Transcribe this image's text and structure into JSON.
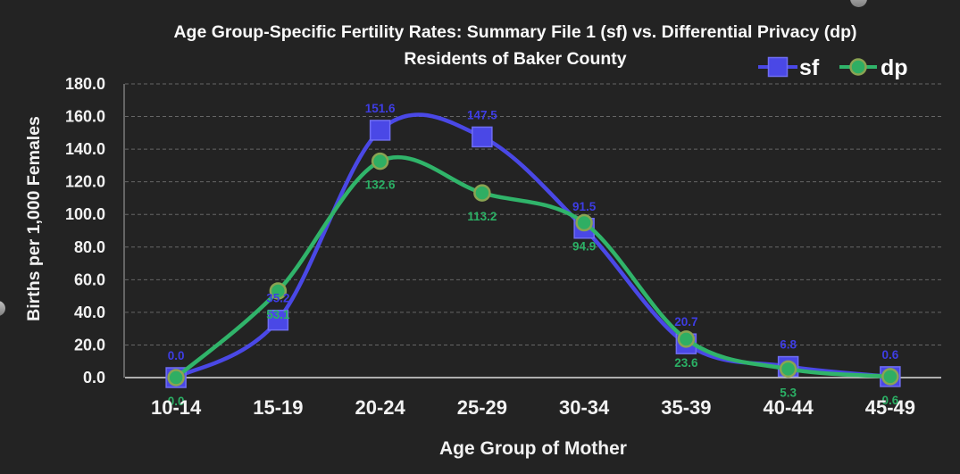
{
  "chart_data": {
    "type": "line",
    "title": "Age Group-Specific Fertility Rates: Summary File 1 (sf) vs. Differential Privacy (dp)",
    "subtitle": "Residents of Baker County",
    "xlabel": "Age Group of Mother",
    "ylabel": "Births per 1,000 Females",
    "categories": [
      "10-14",
      "15-19",
      "20-24",
      "25-29",
      "30-34",
      "35-39",
      "40-44",
      "45-49"
    ],
    "series": [
      {
        "name": "sf",
        "marker": "square",
        "color": "#4a48e6",
        "marker_stroke": "#6f6df2",
        "label_color": "#3e3de4",
        "label_position": "above",
        "values": [
          0.0,
          35.2,
          151.6,
          147.5,
          91.5,
          20.7,
          6.8,
          0.6
        ],
        "labels": [
          "0.0",
          "35.2",
          "151.6",
          "147.5",
          "91.5",
          "20.7",
          "6.8",
          "0.6"
        ]
      },
      {
        "name": "dp",
        "marker": "circle",
        "color": "#30b46a",
        "marker_fill": "#2fae63",
        "marker_stroke": "#8aa352",
        "label_color": "#2bb065",
        "label_position": "below",
        "values": [
          0.0,
          53.1,
          132.6,
          113.2,
          94.9,
          23.6,
          5.3,
          0.6
        ],
        "labels": [
          "0.0",
          "53.1",
          "132.6",
          "113.2",
          "94.9",
          "23.6",
          "5.3",
          "0.6"
        ]
      }
    ],
    "ylim": [
      0,
      180
    ],
    "ytick_step": 20,
    "ytick_labels": [
      "180.0",
      "160.0",
      "140.0",
      "120.0",
      "100.0",
      "80.0",
      "60.0",
      "40.0",
      "20.0",
      "0.0"
    ],
    "grid": "horizontal-dashed",
    "legend_position": "top-right",
    "legend": [
      "sf",
      "dp"
    ],
    "colors": {
      "background": "#232323",
      "text": "#f2f2f2",
      "title_text": "#fafafa",
      "gridline": "#666666",
      "zero_line": "#dcdcdc",
      "axis_line": "#909090"
    }
  }
}
